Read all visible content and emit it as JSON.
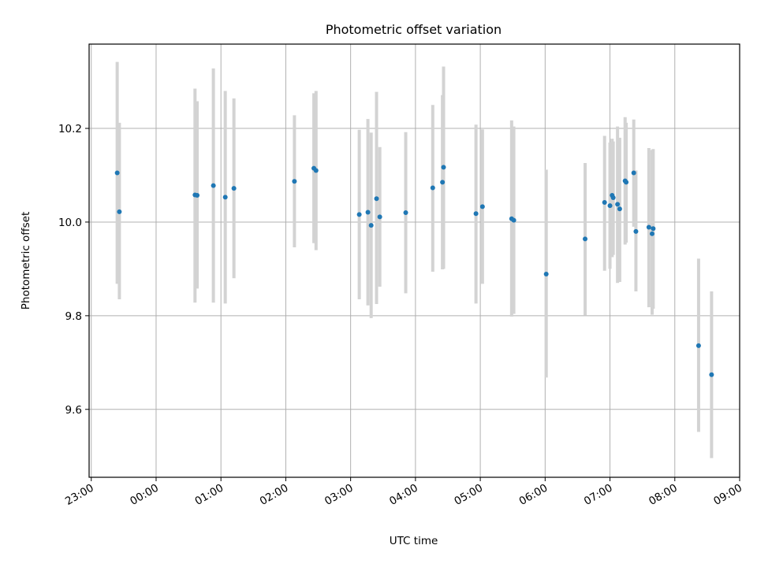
{
  "chart_data": {
    "type": "scatter",
    "title": "Photometric offset variation",
    "xlabel": "UTC time",
    "ylabel": "Photometric offset",
    "x_tick_labels": [
      "23:00",
      "00:00",
      "01:00",
      "02:00",
      "03:00",
      "04:00",
      "05:00",
      "06:00",
      "07:00",
      "08:00",
      "09:00"
    ],
    "x_tick_values": [
      "23:00",
      "00:00",
      "01:00",
      "02:00",
      "03:00",
      "04:00",
      "05:00",
      "06:00",
      "07:00",
      "08:00",
      "09:00"
    ],
    "y_tick_labels": [
      "9.6",
      "9.8",
      "10.0",
      "10.2"
    ],
    "y_tick_values": [
      9.6,
      9.8,
      10.0,
      10.2
    ],
    "xlim": [
      "22:58",
      "09:00"
    ],
    "ylim": [
      9.455,
      10.38
    ],
    "grid": true,
    "colors": {
      "point": "#1f77b4",
      "errorbar": "#d3d3d3",
      "grid": "#b0b0b0"
    },
    "points": [
      {
        "x": "23:24",
        "y": 10.105,
        "ylo": 9.868,
        "yhi": 10.342
      },
      {
        "x": "23:26",
        "y": 10.022,
        "ylo": 9.835,
        "yhi": 10.212
      },
      {
        "x": "00:36",
        "y": 10.058,
        "ylo": 9.828,
        "yhi": 10.285
      },
      {
        "x": "00:38",
        "y": 10.057,
        "ylo": 9.858,
        "yhi": 10.258
      },
      {
        "x": "00:53",
        "y": 10.078,
        "ylo": 9.828,
        "yhi": 10.328
      },
      {
        "x": "01:04",
        "y": 10.053,
        "ylo": 9.826,
        "yhi": 10.28
      },
      {
        "x": "01:12",
        "y": 10.072,
        "ylo": 9.88,
        "yhi": 10.264
      },
      {
        "x": "02:08",
        "y": 10.087,
        "ylo": 9.946,
        "yhi": 10.228
      },
      {
        "x": "02:26",
        "y": 10.115,
        "ylo": 9.955,
        "yhi": 10.275
      },
      {
        "x": "02:28",
        "y": 10.11,
        "ylo": 9.94,
        "yhi": 10.28
      },
      {
        "x": "03:08",
        "y": 10.016,
        "ylo": 9.835,
        "yhi": 10.197
      },
      {
        "x": "03:16",
        "y": 10.021,
        "ylo": 9.822,
        "yhi": 10.22
      },
      {
        "x": "03:19",
        "y": 9.993,
        "ylo": 9.795,
        "yhi": 10.191
      },
      {
        "x": "03:24",
        "y": 10.05,
        "ylo": 9.825,
        "yhi": 10.278
      },
      {
        "x": "03:27",
        "y": 10.011,
        "ylo": 9.862,
        "yhi": 10.16
      },
      {
        "x": "03:51",
        "y": 10.02,
        "ylo": 9.848,
        "yhi": 10.192
      },
      {
        "x": "04:16",
        "y": 10.073,
        "ylo": 9.894,
        "yhi": 10.25
      },
      {
        "x": "04:25",
        "y": 10.085,
        "ylo": 9.899,
        "yhi": 10.271
      },
      {
        "x": "04:26",
        "y": 10.117,
        "ylo": 9.9,
        "yhi": 10.332
      },
      {
        "x": "04:56",
        "y": 10.018,
        "ylo": 9.826,
        "yhi": 10.208
      },
      {
        "x": "05:02",
        "y": 10.033,
        "ylo": 9.868,
        "yhi": 10.198
      },
      {
        "x": "05:29",
        "y": 10.007,
        "ylo": 9.798,
        "yhi": 10.217
      },
      {
        "x": "05:31",
        "y": 10.004,
        "ylo": 9.804,
        "yhi": 10.204
      },
      {
        "x": "06:01",
        "y": 9.889,
        "ylo": 9.668,
        "yhi": 10.112
      },
      {
        "x": "06:37",
        "y": 9.964,
        "ylo": 9.801,
        "yhi": 10.126
      },
      {
        "x": "06:55",
        "y": 10.042,
        "ylo": 9.896,
        "yhi": 10.184
      },
      {
        "x": "07:00",
        "y": 10.035,
        "ylo": 9.9,
        "yhi": 10.17
      },
      {
        "x": "07:02",
        "y": 10.057,
        "ylo": 9.925,
        "yhi": 10.178
      },
      {
        "x": "07:03",
        "y": 10.052,
        "ylo": 9.93,
        "yhi": 10.172
      },
      {
        "x": "07:07",
        "y": 10.038,
        "ylo": 9.87,
        "yhi": 10.204
      },
      {
        "x": "07:09",
        "y": 10.028,
        "ylo": 9.872,
        "yhi": 10.18
      },
      {
        "x": "07:14",
        "y": 10.088,
        "ylo": 9.952,
        "yhi": 10.224
      },
      {
        "x": "07:15",
        "y": 10.085,
        "ylo": 9.956,
        "yhi": 10.212
      },
      {
        "x": "07:22",
        "y": 10.105,
        "ylo": 9.99,
        "yhi": 10.219
      },
      {
        "x": "07:24",
        "y": 9.98,
        "ylo": 9.852,
        "yhi": 10.11
      },
      {
        "x": "07:36",
        "y": 9.989,
        "ylo": 9.818,
        "yhi": 10.158
      },
      {
        "x": "07:39",
        "y": 9.975,
        "ylo": 9.802,
        "yhi": 10.154
      },
      {
        "x": "07:40",
        "y": 9.986,
        "ylo": 9.815,
        "yhi": 10.156
      },
      {
        "x": "08:22",
        "y": 9.736,
        "ylo": 9.552,
        "yhi": 9.922
      },
      {
        "x": "08:34",
        "y": 9.674,
        "ylo": 9.496,
        "yhi": 9.852
      }
    ]
  }
}
